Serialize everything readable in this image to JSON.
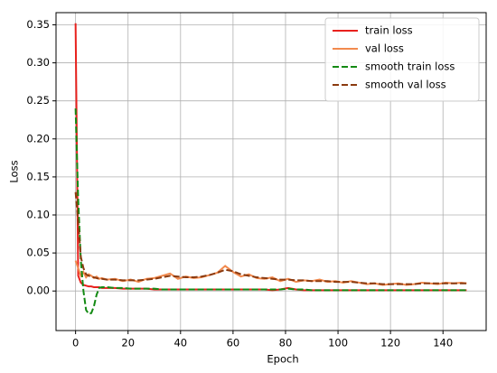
{
  "chart_data": {
    "type": "line",
    "xlabel": "Epoch",
    "ylabel": "Loss",
    "x": [
      0,
      1,
      2,
      3,
      4,
      5,
      6,
      7,
      8,
      9,
      10,
      12,
      15,
      18,
      21,
      24,
      27,
      30,
      33,
      36,
      39,
      42,
      45,
      48,
      51,
      54,
      57,
      60,
      63,
      66,
      69,
      72,
      75,
      78,
      81,
      84,
      87,
      90,
      93,
      96,
      99,
      102,
      105,
      108,
      111,
      114,
      117,
      120,
      123,
      126,
      129,
      132,
      135,
      138,
      141,
      144,
      147,
      149
    ],
    "series": [
      {
        "name": "train loss",
        "color": "#e8211d",
        "linestyle": "solid",
        "values": [
          0.352,
          0.02,
          0.011,
          0.008,
          0.007,
          0.006,
          0.006,
          0.005,
          0.005,
          0.005,
          0.004,
          0.004,
          0.004,
          0.003,
          0.003,
          0.003,
          0.003,
          0.002,
          0.002,
          0.002,
          0.002,
          0.002,
          0.002,
          0.002,
          0.002,
          0.002,
          0.002,
          0.002,
          0.002,
          0.002,
          0.002,
          0.002,
          0.001,
          0.002,
          0.004,
          0.002,
          0.001,
          0.001,
          0.001,
          0.001,
          0.001,
          0.001,
          0.001,
          0.001,
          0.001,
          0.001,
          0.001,
          0.001,
          0.001,
          0.001,
          0.001,
          0.001,
          0.001,
          0.001,
          0.001,
          0.001,
          0.001,
          0.001
        ]
      },
      {
        "name": "val loss",
        "color": "#f28a4e",
        "linestyle": "solid",
        "values": [
          0.04,
          0.03,
          0.02,
          0.025,
          0.018,
          0.022,
          0.02,
          0.017,
          0.019,
          0.016,
          0.017,
          0.015,
          0.016,
          0.013,
          0.015,
          0.012,
          0.016,
          0.017,
          0.02,
          0.023,
          0.016,
          0.019,
          0.017,
          0.018,
          0.021,
          0.024,
          0.033,
          0.025,
          0.019,
          0.022,
          0.017,
          0.016,
          0.018,
          0.013,
          0.016,
          0.012,
          0.014,
          0.013,
          0.015,
          0.012,
          0.013,
          0.011,
          0.013,
          0.011,
          0.009,
          0.01,
          0.008,
          0.009,
          0.01,
          0.008,
          0.009,
          0.011,
          0.01,
          0.009,
          0.011,
          0.01,
          0.011,
          0.01
        ]
      },
      {
        "name": "smooth train loss",
        "color": "#138a13",
        "linestyle": "dashed",
        "values": [
          0.24,
          0.12,
          0.04,
          0.0,
          -0.025,
          -0.03,
          -0.029,
          -0.02,
          -0.005,
          0.004,
          0.005,
          0.005,
          0.004,
          0.004,
          0.003,
          0.003,
          0.003,
          0.003,
          0.002,
          0.002,
          0.002,
          0.002,
          0.002,
          0.002,
          0.002,
          0.002,
          0.002,
          0.002,
          0.002,
          0.002,
          0.002,
          0.002,
          0.002,
          0.002,
          0.003,
          0.002,
          0.002,
          0.001,
          0.001,
          0.001,
          0.001,
          0.001,
          0.001,
          0.001,
          0.001,
          0.001,
          0.001,
          0.001,
          0.001,
          0.001,
          0.001,
          0.001,
          0.001,
          0.001,
          0.001,
          0.001,
          0.001,
          0.001
        ]
      },
      {
        "name": "smooth val loss",
        "color": "#8b3a0f",
        "linestyle": "dashed",
        "values": [
          0.13,
          0.09,
          0.045,
          0.03,
          0.022,
          0.02,
          0.019,
          0.018,
          0.017,
          0.016,
          0.016,
          0.015,
          0.015,
          0.014,
          0.014,
          0.014,
          0.015,
          0.016,
          0.018,
          0.02,
          0.019,
          0.018,
          0.018,
          0.019,
          0.021,
          0.024,
          0.028,
          0.026,
          0.022,
          0.02,
          0.018,
          0.017,
          0.016,
          0.015,
          0.015,
          0.014,
          0.014,
          0.013,
          0.013,
          0.013,
          0.012,
          0.012,
          0.012,
          0.011,
          0.01,
          0.01,
          0.009,
          0.009,
          0.009,
          0.009,
          0.009,
          0.01,
          0.01,
          0.01,
          0.01,
          0.01,
          0.01,
          0.01
        ]
      }
    ],
    "xlim": [
      -7.45,
      156.45
    ],
    "xticks": [
      0,
      20,
      40,
      60,
      80,
      100,
      120,
      140
    ],
    "ylim": [
      -0.052,
      0.366
    ],
    "yticks": [
      {
        "value": 0,
        "label": "0.00"
      },
      {
        "value": 0.05,
        "label": "0.05"
      },
      {
        "value": 0.1,
        "label": "0.10"
      },
      {
        "value": 0.15,
        "label": "0.15"
      },
      {
        "value": 0.2,
        "label": "0.20"
      },
      {
        "value": 0.25,
        "label": "0.25"
      },
      {
        "value": 0.3,
        "label": "0.30"
      },
      {
        "value": 0.35,
        "label": "0.35"
      }
    ],
    "grid": true,
    "legend": "upper right"
  }
}
